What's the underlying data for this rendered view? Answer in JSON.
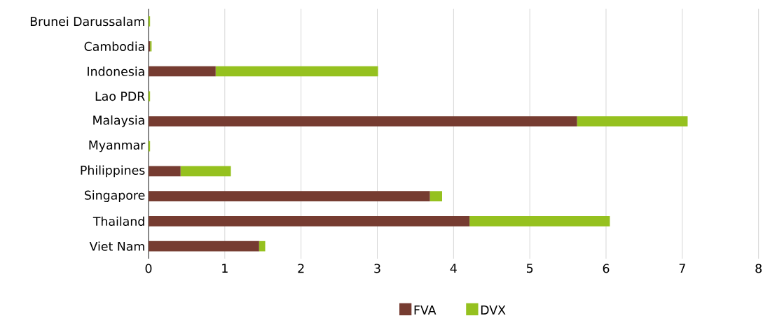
{
  "chart_data": {
    "type": "bar",
    "orientation": "horizontal",
    "stacked": true,
    "categories": [
      "Brunei Darussalam",
      "Cambodia",
      "Indonesia",
      "Lao PDR",
      "Malaysia",
      "Myanmar",
      "Philippines",
      "Singapore",
      "Thailand",
      "Viet Nam"
    ],
    "series": [
      {
        "name": "FVA",
        "color": "#763c31",
        "values": [
          0,
          0.02,
          0.88,
          0,
          5.62,
          0,
          0.42,
          3.69,
          4.21,
          1.45
        ]
      },
      {
        "name": "DVX",
        "color": "#95c11f",
        "values": [
          0.02,
          0.02,
          2.13,
          0.02,
          1.45,
          0.02,
          0.66,
          0.16,
          1.84,
          0.08
        ]
      }
    ],
    "xlim": [
      0,
      8
    ],
    "xticks": [
      0,
      1,
      2,
      3,
      4,
      5,
      6,
      7,
      8
    ],
    "grid": "x",
    "legend": "bottom"
  }
}
